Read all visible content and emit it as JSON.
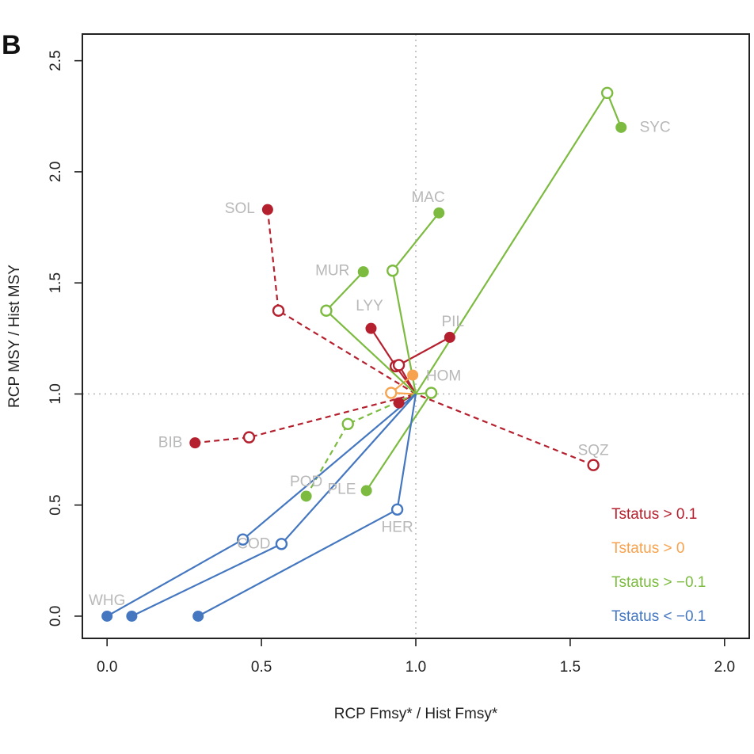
{
  "panel_label": "B",
  "colors": {
    "red": "#b5202e",
    "orange": "#f6a24e",
    "green": "#7cbb40",
    "blue": "#4477c0",
    "point_label": "#b8b8b8",
    "refline": "#c8c8c8"
  },
  "chart_data": {
    "type": "scatter",
    "xlabel": "RCP Fmsy* / Hist Fmsy*",
    "ylabel": "RCP MSY / Hist MSY",
    "xlim": [
      -0.08,
      2.08
    ],
    "ylim": [
      -0.1,
      2.62
    ],
    "xticks": [
      "0.0",
      "0.5",
      "1.0",
      "1.5",
      "2.0"
    ],
    "yticks": [
      "0.0",
      "0.5",
      "1.0",
      "1.5",
      "2.0",
      "2.5"
    ],
    "refline": {
      "x": 1.0,
      "y": 1.0
    },
    "legend": {
      "placement": "bottom-right",
      "entries": [
        {
          "label": "Tstatus > 0.1",
          "color": "red"
        },
        {
          "label": "Tstatus > 0",
          "color": "orange"
        },
        {
          "label": "Tstatus > −0.1",
          "color": "green"
        },
        {
          "label": "Tstatus < −0.1",
          "color": "blue"
        }
      ]
    },
    "species": [
      {
        "label": "SOL",
        "color": "red",
        "dashed": true,
        "filled": [
          0.52,
          1.83
        ],
        "open": [
          0.555,
          1.375
        ],
        "label_at": [
          0.43,
          1.84
        ]
      },
      {
        "label": "BIB",
        "color": "red",
        "dashed": true,
        "filled": [
          0.285,
          0.78
        ],
        "open": [
          0.46,
          0.805
        ],
        "label_at": [
          0.205,
          0.785
        ]
      },
      {
        "label": "SQZ",
        "color": "red",
        "dashed": true,
        "filled": null,
        "open": [
          1.575,
          0.68
        ],
        "label_at": [
          1.575,
          0.75
        ]
      },
      {
        "label": "LYY",
        "color": "red",
        "dashed": false,
        "filled": [
          0.855,
          1.295
        ],
        "open": [
          0.935,
          1.125
        ],
        "label_at": [
          0.85,
          1.4
        ]
      },
      {
        "label": "PIL",
        "color": "red",
        "dashed": false,
        "filled": [
          1.11,
          1.255
        ],
        "open": [
          0.945,
          1.13
        ],
        "label_at": [
          1.12,
          1.33
        ]
      },
      {
        "label": "",
        "color": "red",
        "dashed": false,
        "filled": [
          0.945,
          0.96
        ],
        "open": null,
        "label_at": null
      },
      {
        "label": "HOM",
        "color": "orange",
        "dashed": false,
        "filled": [
          0.99,
          1.085
        ],
        "open": [
          0.92,
          1.005
        ],
        "label_at": [
          1.09,
          1.085
        ]
      },
      {
        "label": "SYC",
        "color": "green",
        "dashed": false,
        "filled": [
          1.665,
          2.2
        ],
        "open": [
          1.62,
          2.355
        ],
        "label_at": [
          1.775,
          2.205
        ]
      },
      {
        "label": "MAC",
        "color": "green",
        "dashed": false,
        "filled": [
          1.075,
          1.815
        ],
        "open": [
          0.925,
          1.555
        ],
        "label_at": [
          1.04,
          1.89
        ]
      },
      {
        "label": "MUR",
        "color": "green",
        "dashed": false,
        "filled": [
          0.83,
          1.55
        ],
        "open": [
          0.71,
          1.375
        ],
        "label_at": [
          0.73,
          1.56
        ]
      },
      {
        "label": "POD",
        "color": "green",
        "dashed": true,
        "filled": [
          0.645,
          0.54
        ],
        "open": [
          0.78,
          0.865
        ],
        "label_at": [
          0.645,
          0.61
        ]
      },
      {
        "label": "PLE",
        "color": "green",
        "dashed": false,
        "filled": [
          0.84,
          0.565
        ],
        "open": [
          1.05,
          1.005
        ],
        "label_at": [
          0.76,
          0.575
        ]
      },
      {
        "label": "HER",
        "color": "blue",
        "dashed": false,
        "filled": [
          0.295,
          0.0
        ],
        "open": [
          0.94,
          0.48
        ],
        "label_at": [
          0.94,
          0.405
        ]
      },
      {
        "label": "COD",
        "color": "blue",
        "dashed": false,
        "filled": [
          0.08,
          0.0
        ],
        "open": [
          0.565,
          0.325
        ],
        "label_at": [
          0.475,
          0.33
        ]
      },
      {
        "label": "WHG",
        "color": "blue",
        "dashed": false,
        "filled": [
          0.0,
          0.0
        ],
        "open": [
          0.44,
          0.345
        ],
        "label_at": [
          0.0,
          0.075
        ]
      }
    ]
  }
}
